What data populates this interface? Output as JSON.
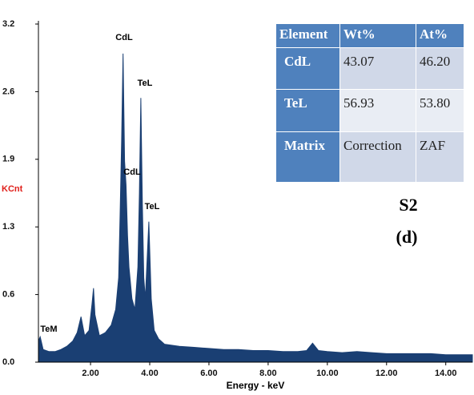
{
  "chart_data": {
    "type": "area",
    "color": "#1a3f73",
    "x_label": "Energy - keV",
    "y_label": "KCnt",
    "xlim": [
      0.24,
      14.9
    ],
    "ylim": [
      0,
      3.2
    ],
    "xticks": [
      {
        "value": 2,
        "label": "2.00"
      },
      {
        "value": 4,
        "label": "4.00"
      },
      {
        "value": 6,
        "label": "6.00"
      },
      {
        "value": 8,
        "label": "8.00"
      },
      {
        "value": 10,
        "label": "10.00"
      },
      {
        "value": 12,
        "label": "12.00"
      },
      {
        "value": 14,
        "label": "14.00"
      }
    ],
    "yticks": [
      {
        "value": 0,
        "label": "0.0"
      },
      {
        "value": 0.64,
        "label": "0.6"
      },
      {
        "value": 1.28,
        "label": "1.3"
      },
      {
        "value": 1.92,
        "label": "1.9"
      },
      {
        "value": 2.56,
        "label": "2.6"
      },
      {
        "value": 3.2,
        "label": "3.2"
      }
    ],
    "x": [
      0.24,
      0.3,
      0.4,
      0.6,
      0.8,
      1.0,
      1.2,
      1.4,
      1.55,
      1.68,
      1.8,
      1.95,
      2.05,
      2.1,
      2.15,
      2.3,
      2.5,
      2.7,
      2.85,
      2.95,
      3.0,
      3.05,
      3.1,
      3.15,
      3.2,
      3.25,
      3.3,
      3.4,
      3.5,
      3.6,
      3.65,
      3.7,
      3.75,
      3.8,
      3.85,
      3.9,
      3.97,
      4.05,
      4.15,
      4.3,
      4.5,
      5.0,
      5.5,
      6.0,
      6.5,
      7.0,
      7.5,
      8.0,
      8.5,
      9.0,
      9.3,
      9.5,
      9.7,
      10.0,
      10.5,
      11.0,
      11.5,
      12.0,
      12.5,
      13.0,
      13.5,
      14.0,
      14.5,
      14.9
    ],
    "values": [
      0.2,
      0.24,
      0.12,
      0.1,
      0.1,
      0.12,
      0.15,
      0.2,
      0.28,
      0.43,
      0.25,
      0.3,
      0.55,
      0.7,
      0.45,
      0.25,
      0.28,
      0.35,
      0.5,
      0.8,
      1.4,
      2.1,
      2.92,
      1.9,
      1.68,
      1.2,
      0.9,
      0.6,
      0.5,
      0.9,
      1.6,
      2.5,
      1.5,
      0.8,
      0.6,
      0.9,
      1.33,
      0.6,
      0.3,
      0.22,
      0.17,
      0.15,
      0.14,
      0.13,
      0.12,
      0.12,
      0.11,
      0.11,
      0.1,
      0.1,
      0.11,
      0.18,
      0.11,
      0.1,
      0.09,
      0.1,
      0.09,
      0.08,
      0.08,
      0.08,
      0.08,
      0.07,
      0.07,
      0.07
    ],
    "peak_labels": [
      "CdL",
      "TeL",
      "CdL",
      "TeL",
      "TeM"
    ],
    "table": {
      "header": [
        "Element",
        "Wt%",
        "At%"
      ],
      "rows": [
        [
          "CdL",
          "43.07",
          "46.20"
        ],
        [
          "TeL",
          "56.93",
          "53.80"
        ],
        [
          "Matrix",
          "Correction",
          "ZAF"
        ]
      ]
    },
    "sample": "S2",
    "panel": "(d)"
  }
}
